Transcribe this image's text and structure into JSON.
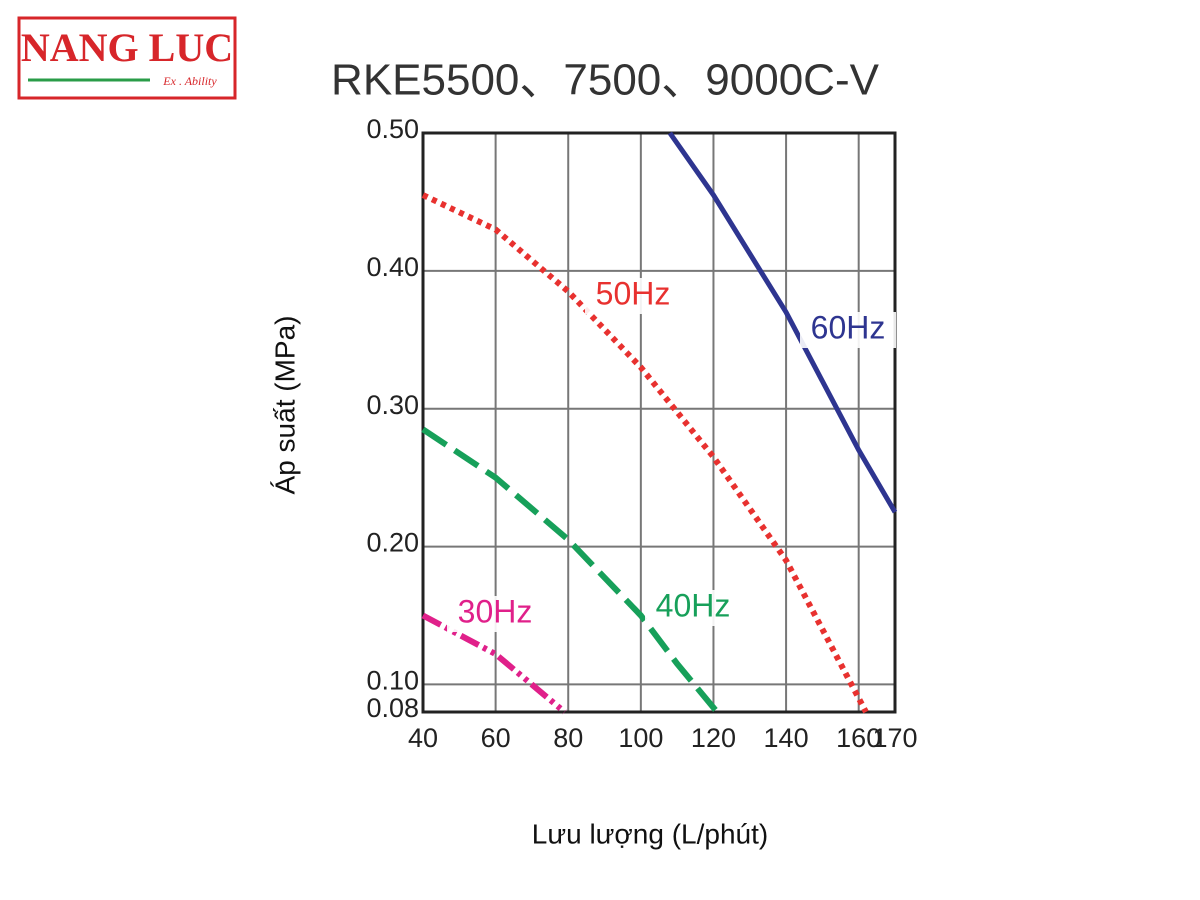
{
  "logo": {
    "name": "NANG LUC",
    "tagline": "Ex . Ability"
  },
  "chart_data": {
    "type": "line",
    "title": "RKE5500、7500、9000C-V",
    "x_label": "Lưu lượng (L/phút)",
    "y_label": "Áp suất (MPa)",
    "xlim": [
      40,
      170
    ],
    "xticks": [
      40,
      60,
      80,
      100,
      120,
      140,
      160,
      170
    ],
    "ylim": [
      0.08,
      0.5
    ],
    "yticks": [
      0.08,
      {
        "value": 0.1,
        "label": "0.10"
      },
      {
        "value": 0.2,
        "label": "0.20"
      },
      {
        "value": 0.3,
        "label": "0.30"
      },
      {
        "value": 0.4,
        "label": "0.40"
      },
      {
        "value": 0.5,
        "label": "0.50"
      }
    ],
    "grid": true,
    "series": [
      {
        "name": "60Hz",
        "color": "#2e3590",
        "style": "solid",
        "x": [
          108,
          120,
          140,
          150,
          160,
          170
        ],
        "values": [
          0.5,
          0.455,
          0.37,
          0.32,
          0.27,
          0.225
        ]
      },
      {
        "name": "50Hz",
        "color": "#e8312f",
        "style": "dotted",
        "x": [
          40,
          60,
          80,
          100,
          120,
          140,
          150,
          160,
          162
        ],
        "values": [
          0.455,
          0.43,
          0.385,
          0.33,
          0.265,
          0.19,
          0.14,
          0.09,
          0.08
        ]
      },
      {
        "name": "40Hz",
        "color": "#17a05a",
        "style": "dashed",
        "x": [
          40,
          60,
          80,
          100,
          110,
          121
        ],
        "values": [
          0.285,
          0.25,
          0.205,
          0.15,
          0.115,
          0.08
        ]
      },
      {
        "name": "30Hz",
        "color": "#e0208a",
        "style": "dashdot",
        "x": [
          40,
          60,
          79
        ],
        "values": [
          0.15,
          0.122,
          0.08
        ]
      }
    ]
  }
}
